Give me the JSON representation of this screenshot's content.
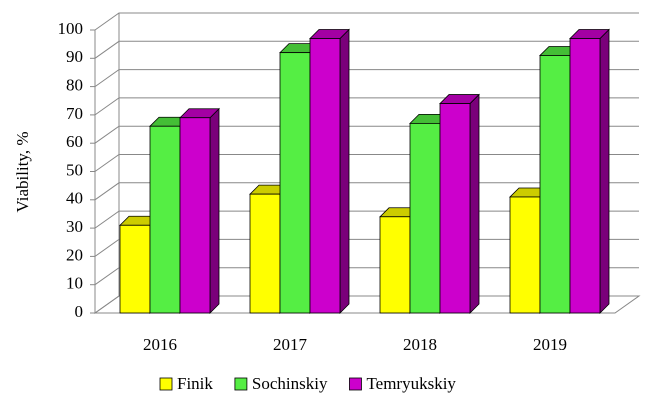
{
  "chart_data": {
    "type": "bar3d",
    "ylabel": "Viability, %",
    "categories": [
      "2016",
      "2017",
      "2018",
      "2019"
    ],
    "series": [
      {
        "name": "Finik",
        "color": "#ffff00",
        "values": [
          31,
          42,
          34,
          41
        ]
      },
      {
        "name": "Sochinskiy",
        "color": "#55ee44",
        "values": [
          66,
          92,
          67,
          91
        ]
      },
      {
        "name": "Temryukskiy",
        "color": "#cc00cc",
        "values": [
          69,
          97,
          74,
          97
        ]
      }
    ],
    "ylim": [
      0,
      100
    ],
    "yticks": [
      0,
      10,
      20,
      30,
      40,
      50,
      60,
      70,
      80,
      90,
      100
    ],
    "grid": true,
    "legend": "bottom"
  }
}
